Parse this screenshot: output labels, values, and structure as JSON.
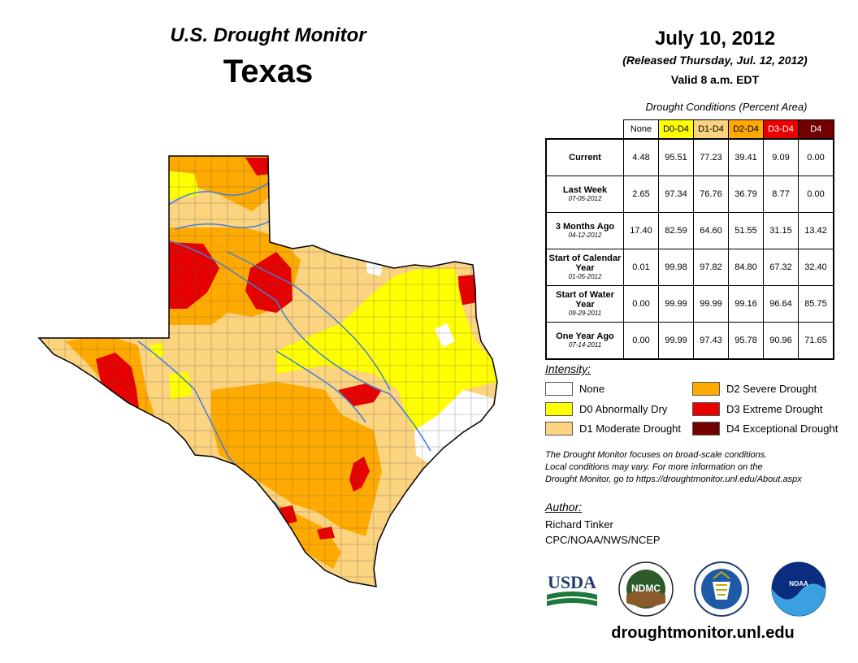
{
  "title": "U.S. Drought Monitor",
  "state": "Texas",
  "date": "July 10, 2012",
  "released": "(Released Thursday, Jul. 12, 2012)",
  "valid": "Valid 8 a.m. EDT",
  "table": {
    "caption": "Drought Conditions (Percent Area)",
    "headers": [
      "None",
      "D0-D4",
      "D1-D4",
      "D2-D4",
      "D3-D4",
      "D4"
    ],
    "header_colors": [
      "#ffffff",
      "#ffff00",
      "#fcd37f",
      "#ffaa00",
      "#e60000",
      "#730000"
    ],
    "rows": [
      {
        "label": "Current",
        "date": "",
        "values": [
          "4.48",
          "95.51",
          "77.23",
          "39.41",
          "9.09",
          "0.00"
        ]
      },
      {
        "label": "Last Week",
        "date": "07-05-2012",
        "values": [
          "2.65",
          "97.34",
          "76.76",
          "36.79",
          "8.77",
          "0.00"
        ]
      },
      {
        "label": "3 Months Ago",
        "date": "04-12-2012",
        "values": [
          "17.40",
          "82.59",
          "64.60",
          "51.55",
          "31.15",
          "13.42"
        ]
      },
      {
        "label": "Start of Calendar Year",
        "date": "01-05-2012",
        "values": [
          "0.01",
          "99.98",
          "97.82",
          "84.80",
          "67.32",
          "32.40"
        ]
      },
      {
        "label": "Start of Water Year",
        "date": "09-29-2011",
        "values": [
          "0.00",
          "99.99",
          "99.99",
          "99.16",
          "96.64",
          "85.75"
        ]
      },
      {
        "label": "One Year Ago",
        "date": "07-14-2011",
        "values": [
          "0.00",
          "99.99",
          "97.43",
          "95.78",
          "90.96",
          "71.65"
        ]
      }
    ]
  },
  "legend": {
    "title": "Intensity:",
    "items": [
      {
        "label": "None",
        "color": "#ffffff"
      },
      {
        "label": "D0 Abnormally Dry",
        "color": "#ffff00"
      },
      {
        "label": "D1 Moderate Drought",
        "color": "#fcd37f"
      },
      {
        "label": "D2 Severe Drought",
        "color": "#ffaa00"
      },
      {
        "label": "D3 Extreme Drought",
        "color": "#e60000"
      },
      {
        "label": "D4 Exceptional Drought",
        "color": "#730000"
      }
    ]
  },
  "disclaimer": {
    "line1": "The Drought Monitor focuses on broad-scale conditions.",
    "line2": "Local conditions may vary. For more information on the",
    "line3": "Drought Monitor, go to https://droughtmonitor.unl.edu/About.aspx"
  },
  "author": {
    "label": "Author:",
    "name": "Richard Tinker",
    "org": "CPC/NOAA/NWS/NCEP"
  },
  "logos": {
    "usda": "USDA",
    "ndmc": "NDMC",
    "noaa": "NOAA"
  },
  "website": "droughtmonitor.unl.edu"
}
